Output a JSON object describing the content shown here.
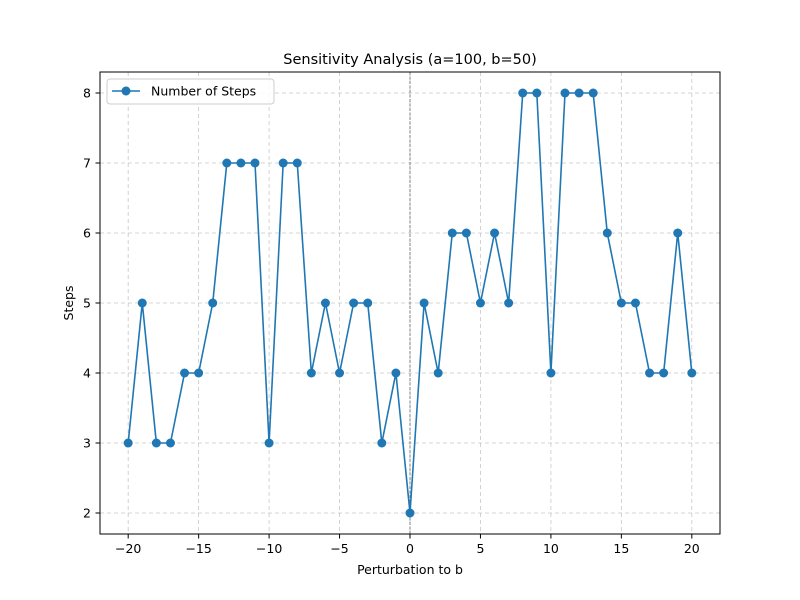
{
  "chart_data": {
    "type": "line",
    "title": "Sensitivity Analysis (a=100, b=50)",
    "xlabel": "Perturbation to b",
    "ylabel": "Steps",
    "xlim": [
      -22,
      22
    ],
    "ylim": [
      1.7,
      8.3
    ],
    "xticks": [
      -20,
      -15,
      -10,
      -5,
      0,
      5,
      10,
      15,
      20
    ],
    "xtick_labels": [
      "−20",
      "−15",
      "−10",
      "−5",
      "0",
      "5",
      "10",
      "15",
      "20"
    ],
    "yticks": [
      2,
      3,
      4,
      5,
      6,
      7,
      8
    ],
    "ytick_labels": [
      "2",
      "3",
      "4",
      "5",
      "6",
      "7",
      "8"
    ],
    "grid": true,
    "legend_position": "top-left",
    "reference_line_x": 0,
    "reference_line_color": "#808080",
    "series": [
      {
        "name": "Number of Steps",
        "color": "#1f77b4",
        "marker": "circle",
        "x": [
          -20,
          -19,
          -18,
          -17,
          -16,
          -15,
          -14,
          -13,
          -12,
          -11,
          -10,
          -9,
          -8,
          -7,
          -6,
          -5,
          -4,
          -3,
          -2,
          -1,
          0,
          1,
          2,
          3,
          4,
          5,
          6,
          7,
          8,
          9,
          10,
          11,
          12,
          13,
          14,
          15,
          16,
          17,
          18,
          19,
          20
        ],
        "values": [
          3,
          5,
          3,
          3,
          4,
          4,
          5,
          7,
          7,
          7,
          3,
          7,
          7,
          4,
          5,
          4,
          5,
          5,
          3,
          4,
          2,
          5,
          4,
          6,
          6,
          5,
          6,
          5,
          8,
          8,
          4,
          8,
          8,
          8,
          6,
          5,
          5,
          4,
          4,
          6,
          4
        ]
      }
    ]
  }
}
